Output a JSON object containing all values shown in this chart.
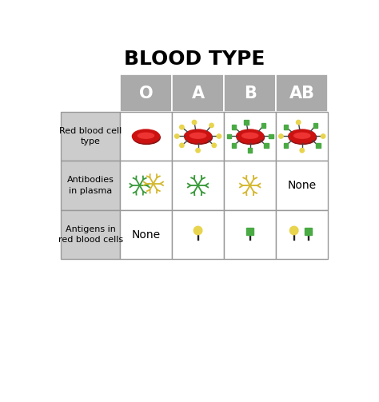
{
  "title": "BLOOD TYPE",
  "title_fontsize": 18,
  "title_fontweight": "bold",
  "bg_color": "#ffffff",
  "header_bg": "#aaaaaa",
  "row_label_bg": "#cccccc",
  "cell_bg": "#ffffff",
  "blood_types": [
    "O",
    "A",
    "B",
    "AB"
  ],
  "row_labels": [
    "Red blood cell\ntype",
    "Antibodies\nin plasma",
    "Antigens in\nred blood cells"
  ],
  "rbc_color": "#cc1111",
  "rbc_dark": "#881111",
  "rbc_highlight": "#ee3333",
  "antigen_A_color": "#e8d44d",
  "antigen_B_color": "#4aaa44",
  "antibody_green": "#3a9a3a",
  "antibody_yellow": "#d4b830"
}
